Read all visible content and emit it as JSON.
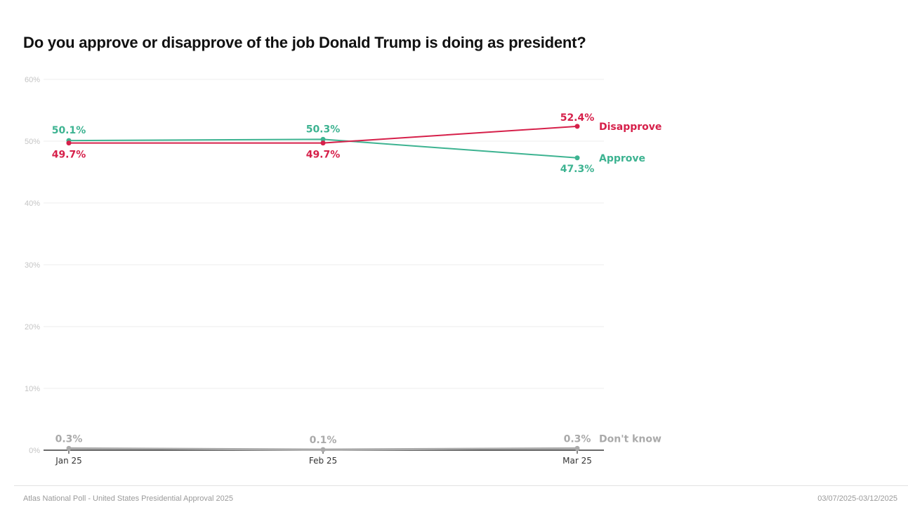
{
  "chart_data": {
    "type": "line",
    "title": "Do you approve or disapprove of the job Donald Trump is doing as president?",
    "xlabel": "",
    "ylabel": "",
    "categories": [
      "Jan 25",
      "Feb 25",
      "Mar 25"
    ],
    "ylim": [
      0,
      60
    ],
    "yticks": [
      0,
      10,
      20,
      30,
      40,
      50,
      60
    ],
    "ytick_labels": [
      "0%",
      "10%",
      "20%",
      "30%",
      "40%",
      "50%",
      "60%"
    ],
    "grid": true,
    "legend": "inline-end-labels",
    "series": [
      {
        "name": "Approve",
        "color": "#3db391",
        "values": [
          50.1,
          50.3,
          47.3
        ],
        "labels": [
          "50.1%",
          "50.3%",
          "47.3%"
        ]
      },
      {
        "name": "Disapprove",
        "color": "#d6204a",
        "values": [
          49.7,
          49.7,
          52.4
        ],
        "labels": [
          "49.7%",
          "49.7%",
          "52.4%"
        ]
      },
      {
        "name": "Don't know",
        "color": "#aaaaaa",
        "values": [
          0.3,
          0.1,
          0.3
        ],
        "labels": [
          "0.3%",
          "0.1%",
          "0.3%"
        ]
      }
    ]
  },
  "footer": {
    "source": "Atlas National Poll - United States Presidential Approval 2025",
    "date_range": "03/07/2025-03/12/2025"
  }
}
